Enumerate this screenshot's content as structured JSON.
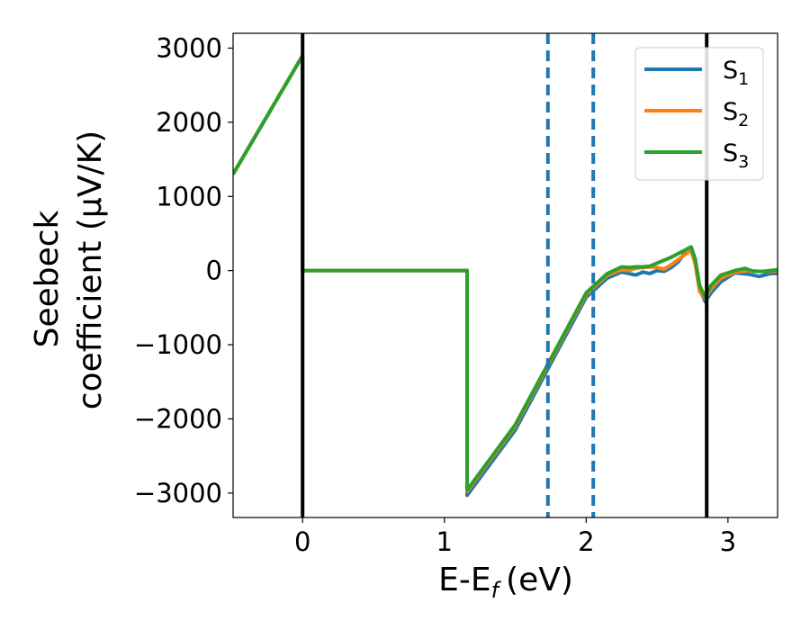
{
  "chart_data": {
    "type": "line",
    "xlabel": "E-E",
    "xlabel_sub": "f",
    "xlabel_unit": "(eV)",
    "ylabel_line1": "Seebeck",
    "ylabel_line2": "coefficient  (μV/K)",
    "xlim": [
      -0.49,
      3.35
    ],
    "ylim": [
      -3330,
      3200
    ],
    "xticks": [
      0,
      1,
      2,
      3
    ],
    "xtick_labels": [
      "0",
      "1",
      "2",
      "3"
    ],
    "yticks": [
      3000,
      2000,
      1000,
      0,
      -1000,
      -2000,
      -3000
    ],
    "ytick_labels": [
      "3000",
      "2000",
      "1000",
      "0",
      "−1000",
      "−2000",
      "−3000"
    ],
    "legend_position": "upper-right",
    "vertical_lines": [
      {
        "x": 0.0,
        "style": "solid",
        "color": "#000000"
      },
      {
        "x": 2.85,
        "style": "solid",
        "color": "#000000"
      },
      {
        "x": 1.73,
        "style": "dashed",
        "color": "#1f77b4"
      },
      {
        "x": 2.05,
        "style": "dashed",
        "color": "#1f77b4"
      }
    ],
    "series": [
      {
        "name": "S",
        "subscript": "1",
        "color": "#1f77b4",
        "points": [
          [
            -0.49,
            1300
          ],
          [
            0,
            2900
          ],
          [
            0,
            0
          ],
          [
            1.16,
            0
          ],
          [
            1.16,
            -3030
          ],
          [
            1.5,
            -2150
          ],
          [
            2.0,
            -360
          ],
          [
            2.15,
            -100
          ],
          [
            2.25,
            -20
          ],
          [
            2.3,
            -40
          ],
          [
            2.35,
            -60
          ],
          [
            2.4,
            -20
          ],
          [
            2.45,
            -40
          ],
          [
            2.5,
            0
          ],
          [
            2.55,
            -10
          ],
          [
            2.6,
            40
          ],
          [
            2.65,
            120
          ],
          [
            2.7,
            250
          ],
          [
            2.74,
            270
          ],
          [
            2.77,
            100
          ],
          [
            2.8,
            -250
          ],
          [
            2.84,
            -420
          ],
          [
            2.88,
            -300
          ],
          [
            2.95,
            -150
          ],
          [
            3.05,
            -30
          ],
          [
            3.15,
            -50
          ],
          [
            3.22,
            -80
          ],
          [
            3.3,
            -40
          ],
          [
            3.35,
            -40
          ]
        ]
      },
      {
        "name": "S",
        "subscript": "2",
        "color": "#ff7f0e",
        "points": [
          [
            -0.49,
            1300
          ],
          [
            0,
            2900
          ],
          [
            0,
            0
          ],
          [
            1.16,
            0
          ],
          [
            1.16,
            -2980
          ],
          [
            1.5,
            -2100
          ],
          [
            2.0,
            -320
          ],
          [
            2.15,
            -60
          ],
          [
            2.25,
            10
          ],
          [
            2.3,
            0
          ],
          [
            2.35,
            30
          ],
          [
            2.4,
            40
          ],
          [
            2.45,
            50
          ],
          [
            2.5,
            40
          ],
          [
            2.55,
            20
          ],
          [
            2.6,
            80
          ],
          [
            2.65,
            150
          ],
          [
            2.7,
            220
          ],
          [
            2.74,
            280
          ],
          [
            2.77,
            80
          ],
          [
            2.8,
            -280
          ],
          [
            2.84,
            -380
          ],
          [
            2.88,
            -250
          ],
          [
            2.95,
            -100
          ],
          [
            3.05,
            -20
          ],
          [
            3.15,
            0
          ],
          [
            3.22,
            -10
          ],
          [
            3.3,
            -10
          ],
          [
            3.35,
            -5
          ]
        ]
      },
      {
        "name": "S",
        "subscript": "3",
        "color": "#2ca02c",
        "points": [
          [
            -0.49,
            1300
          ],
          [
            0,
            2900
          ],
          [
            0,
            0
          ],
          [
            1.16,
            0
          ],
          [
            1.16,
            -2960
          ],
          [
            1.5,
            -2080
          ],
          [
            2.0,
            -300
          ],
          [
            2.15,
            -40
          ],
          [
            2.25,
            50
          ],
          [
            2.3,
            40
          ],
          [
            2.35,
            50
          ],
          [
            2.4,
            50
          ],
          [
            2.45,
            60
          ],
          [
            2.5,
            100
          ],
          [
            2.55,
            140
          ],
          [
            2.6,
            180
          ],
          [
            2.65,
            230
          ],
          [
            2.7,
            280
          ],
          [
            2.74,
            320
          ],
          [
            2.77,
            150
          ],
          [
            2.8,
            -200
          ],
          [
            2.84,
            -360
          ],
          [
            2.88,
            -200
          ],
          [
            2.95,
            -60
          ],
          [
            3.05,
            0
          ],
          [
            3.12,
            30
          ],
          [
            3.18,
            -10
          ],
          [
            3.25,
            -10
          ],
          [
            3.35,
            10
          ]
        ]
      }
    ]
  }
}
